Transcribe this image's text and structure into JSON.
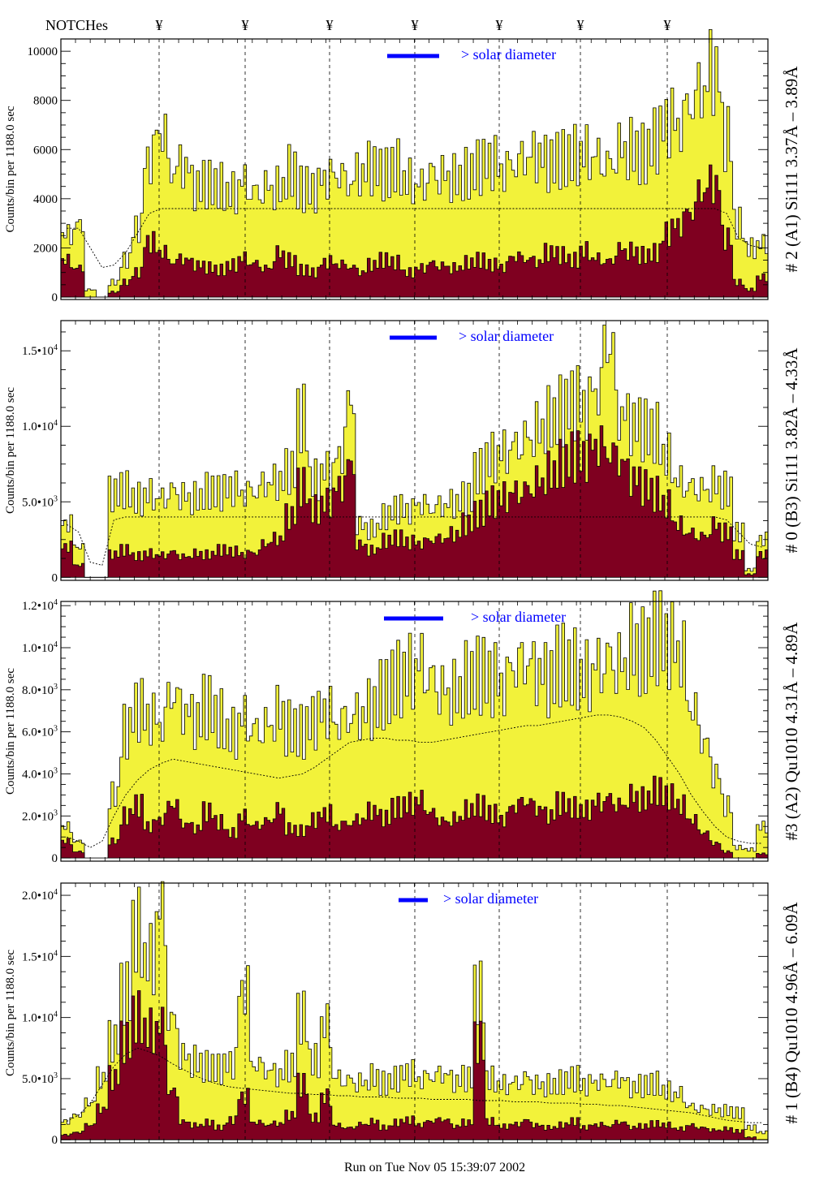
{
  "header": {
    "notches_label": "NOTCHes",
    "notch_symbol": "¥",
    "notch_count": 7
  },
  "footer": {
    "run_text": "Run on Tue Nov 05 15:39:07 2002"
  },
  "colors": {
    "total": "#f2f23a",
    "subset": "#7f0020",
    "legend": "#0000ff",
    "mean": "#000000"
  },
  "chart_data": [
    {
      "type": "bar",
      "ylabel": "Counts/bin per   1188.0 sec",
      "right_label": "# 2 (A1) Si111  3.37Å – 3.89Å",
      "legend": "> solar diameter",
      "ylim": [
        -100,
        10500
      ],
      "yticks": [
        {
          "v": 0,
          "m": "0",
          "e": ""
        },
        {
          "v": 2000,
          "m": "2000",
          "e": ""
        },
        {
          "v": 4000,
          "m": "4000",
          "e": ""
        },
        {
          "v": 6000,
          "m": "6000",
          "e": ""
        },
        {
          "v": 8000,
          "m": "8000",
          "e": ""
        },
        {
          "v": 10000,
          "m": "10000",
          "e": ""
        }
      ],
      "series": [
        {
          "name": "total",
          "values": [
            2600,
            3000,
            300,
            0,
            600,
            1500,
            2800,
            5500,
            6500,
            5000,
            5200,
            4400,
            4600,
            4500,
            4300,
            4800,
            4400,
            4600,
            4500,
            5100,
            4400,
            4300,
            4700,
            4800,
            4500,
            4900,
            5200,
            5000,
            5300,
            4800,
            4700,
            5200,
            5100,
            4900,
            5000,
            5300,
            5400,
            5000,
            5200,
            5500,
            5600,
            5400,
            5600,
            5800,
            6000,
            5900,
            5600,
            6200,
            6100,
            5800,
            6400,
            7000,
            6800,
            7600,
            8200,
            9000,
            6500,
            3000,
            2000,
            2200
          ]
        },
        {
          "name": "subset",
          "values": [
            1500,
            1200,
            0,
            0,
            200,
            600,
            1000,
            2200,
            1800,
            1400,
            1500,
            1300,
            1200,
            1100,
            1300,
            1600,
            1400,
            1200,
            1800,
            1500,
            1100,
            1000,
            1400,
            1300,
            1200,
            1000,
            1300,
            1500,
            1400,
            1000,
            1200,
            1400,
            1300,
            1200,
            1400,
            1500,
            1300,
            1200,
            1600,
            1500,
            1400,
            1800,
            1700,
            1500,
            1900,
            1600,
            1500,
            2000,
            1900,
            1700,
            1800,
            2600,
            2900,
            3400,
            4200,
            4500,
            2400,
            600,
            300,
            800
          ]
        },
        {
          "name": "mean",
          "values": [
            2800,
            2800,
            2000,
            1200,
            1300,
            1800,
            2600,
            3400,
            3600,
            3600,
            3600,
            3600,
            3600,
            3600,
            3600,
            3600,
            3600,
            3600,
            3600,
            3600,
            3600,
            3600,
            3600,
            3600,
            3600,
            3600,
            3600,
            3600,
            3600,
            3600,
            3600,
            3600,
            3600,
            3600,
            3600,
            3600,
            3600,
            3600,
            3600,
            3600,
            3600,
            3600,
            3600,
            3600,
            3600,
            3600,
            3600,
            3600,
            3600,
            3600,
            3600,
            3600,
            3600,
            3600,
            3600,
            3600,
            3400,
            2400,
            2100,
            2000
          ]
        }
      ]
    },
    {
      "type": "bar",
      "ylabel": "Counts/bin per   1188.0 sec",
      "right_label": "# 0 (B3) Si111  3.82Å – 4.33Å",
      "legend": "> solar diameter",
      "ylim": [
        -200,
        17000
      ],
      "yticks": [
        {
          "v": 0,
          "m": "0",
          "e": ""
        },
        {
          "v": 5000,
          "m": "5.0•10",
          "e": "3"
        },
        {
          "v": 10000,
          "m": "1.0•10",
          "e": "4"
        },
        {
          "v": 15000,
          "m": "1.5•10",
          "e": "4"
        }
      ],
      "series": [
        {
          "name": "total",
          "values": [
            3500,
            2000,
            0,
            0,
            5500,
            5800,
            5200,
            5600,
            5400,
            5900,
            5500,
            5300,
            5700,
            5600,
            5800,
            5400,
            5500,
            6000,
            6200,
            7000,
            10500,
            6500,
            7200,
            8000,
            11500,
            3500,
            3200,
            4000,
            4500,
            4300,
            4700,
            4400,
            4600,
            4800,
            5200,
            7000,
            8000,
            8500,
            9000,
            9500,
            10000,
            10500,
            11000,
            11500,
            11000,
            12000,
            15000,
            10500,
            10000,
            9800,
            9500,
            8000,
            6500,
            6200,
            6000,
            6300,
            5800,
            3000,
            500,
            2500
          ]
        },
        {
          "name": "subset",
          "values": [
            2000,
            800,
            0,
            0,
            1500,
            1800,
            1400,
            1600,
            1500,
            1700,
            1400,
            1600,
            1500,
            1800,
            1700,
            1500,
            1600,
            2200,
            2500,
            4000,
            6000,
            4500,
            5000,
            6000,
            7500,
            2200,
            1800,
            2400,
            2600,
            2300,
            2200,
            2400,
            2500,
            2800,
            3500,
            4200,
            5000,
            5400,
            5800,
            6000,
            6500,
            7000,
            7500,
            8000,
            7800,
            8500,
            8000,
            7500,
            6500,
            6000,
            5500,
            4800,
            3500,
            3000,
            2800,
            3500,
            3000,
            1500,
            200,
            1500
          ]
        },
        {
          "name": "mean",
          "values": [
            3500,
            3000,
            1000,
            800,
            3800,
            4000,
            4000,
            4000,
            4000,
            4000,
            4000,
            4000,
            4000,
            4000,
            4000,
            4000,
            4000,
            4000,
            4000,
            4000,
            4000,
            4000,
            4000,
            4000,
            4000,
            4000,
            4000,
            4000,
            4000,
            4000,
            4000,
            4000,
            4000,
            4000,
            4000,
            4000,
            4000,
            4000,
            4000,
            4000,
            4000,
            4000,
            4000,
            4000,
            4000,
            4000,
            4000,
            4000,
            4000,
            4000,
            4000,
            4000,
            4000,
            4000,
            4000,
            4000,
            3800,
            3000,
            2200,
            2000
          ]
        }
      ]
    },
    {
      "type": "bar",
      "ylabel": "Counts/bin per   1188.0 sec",
      "right_label": "#3 (A2) Qu1010  4.31Å – 4.89Å",
      "legend": "> solar diameter",
      "ylim": [
        -150,
        12200
      ],
      "yticks": [
        {
          "v": 0,
          "m": "0",
          "e": ""
        },
        {
          "v": 2000,
          "m": "2.0•10",
          "e": "3"
        },
        {
          "v": 4000,
          "m": "4.0•10",
          "e": "3"
        },
        {
          "v": 6000,
          "m": "6.0•10",
          "e": "3"
        },
        {
          "v": 8000,
          "m": "8.0•10",
          "e": "3"
        },
        {
          "v": 10000,
          "m": "1.0•10",
          "e": "4"
        },
        {
          "v": 12000,
          "m": "1.2•10",
          "e": "4"
        }
      ],
      "series": [
        {
          "name": "total",
          "values": [
            1500,
            800,
            0,
            0,
            3000,
            6000,
            7000,
            6500,
            6200,
            7500,
            6800,
            6400,
            7200,
            6600,
            6000,
            6800,
            6300,
            6500,
            7000,
            6200,
            6000,
            6500,
            6800,
            6200,
            6400,
            6600,
            7000,
            7800,
            8500,
            9000,
            9500,
            8800,
            8200,
            8000,
            8500,
            8700,
            8400,
            8000,
            8800,
            9000,
            8600,
            8400,
            9200,
            9000,
            8800,
            9400,
            9800,
            9500,
            10200,
            9800,
            10500,
            10000,
            9500,
            7000,
            5500,
            4000,
            2500,
            500,
            400,
            1500
          ]
        },
        {
          "name": "subset",
          "values": [
            800,
            300,
            0,
            0,
            800,
            2000,
            2500,
            1500,
            1800,
            2500,
            1600,
            1400,
            2200,
            1700,
            1200,
            2000,
            1600,
            1800,
            2300,
            1400,
            1300,
            1800,
            2100,
            1500,
            1600,
            1800,
            2200,
            1900,
            2400,
            2600,
            2800,
            2200,
            1800,
            1900,
            2300,
            2500,
            2100,
            1800,
            2400,
            2600,
            2300,
            2000,
            2600,
            2400,
            2300,
            2700,
            2900,
            2600,
            3000,
            2800,
            3200,
            2900,
            2500,
            1800,
            1200,
            700,
            300,
            0,
            0,
            200
          ]
        },
        {
          "name": "mean",
          "values": [
            1000,
            800,
            500,
            800,
            2000,
            3000,
            3700,
            4200,
            4500,
            4700,
            4600,
            4500,
            4400,
            4300,
            4200,
            4100,
            4000,
            3900,
            3800,
            3900,
            4000,
            4300,
            4700,
            5100,
            5500,
            5600,
            5700,
            5700,
            5600,
            5600,
            5500,
            5500,
            5600,
            5700,
            5800,
            5900,
            6000,
            6100,
            6200,
            6300,
            6300,
            6400,
            6500,
            6600,
            6700,
            6800,
            6800,
            6700,
            6500,
            6200,
            5600,
            4800,
            4000,
            3000,
            2200,
            1500,
            1000,
            800,
            700,
            700
          ]
        }
      ]
    },
    {
      "type": "bar",
      "ylabel": "Counts/bin per   1188.0 sec",
      "right_label": "# 1 (B4) Qu1010 4.96Å – 6.09Å",
      "legend": "> solar diameter",
      "ylim": [
        -250,
        21000
      ],
      "yticks": [
        {
          "v": 0,
          "m": "0",
          "e": ""
        },
        {
          "v": 5000,
          "m": "5.0•10",
          "e": "3"
        },
        {
          "v": 10000,
          "m": "1.0•10",
          "e": "4"
        },
        {
          "v": 15000,
          "m": "1.5•10",
          "e": "4"
        },
        {
          "v": 20000,
          "m": "2.0•10",
          "e": "4"
        }
      ],
      "series": [
        {
          "name": "total",
          "values": [
            1500,
            2000,
            3000,
            5000,
            8000,
            12000,
            17000,
            15000,
            19000,
            10000,
            7000,
            6500,
            6000,
            5800,
            6200,
            12000,
            6000,
            5500,
            5200,
            6000,
            10000,
            6500,
            9500,
            5200,
            5000,
            4800,
            5200,
            4600,
            5000,
            5400,
            4800,
            5000,
            5200,
            4700,
            5000,
            12000,
            5000,
            4600,
            4800,
            5200,
            4600,
            4500,
            4700,
            5000,
            4400,
            4600,
            4500,
            4800,
            4200,
            4400,
            4600,
            4000,
            3800,
            2800,
            2600,
            2500,
            2400,
            2200,
            1000,
            600
          ]
        },
        {
          "name": "subset",
          "values": [
            400,
            600,
            1200,
            2500,
            5000,
            8000,
            10000,
            9000,
            9500,
            4000,
            1500,
            1200,
            1400,
            1000,
            1600,
            3500,
            1400,
            1200,
            1300,
            2000,
            4500,
            1800,
            3500,
            1200,
            1000,
            1300,
            1500,
            1000,
            1400,
            1600,
            1200,
            1500,
            1600,
            1100,
            1400,
            8000,
            1500,
            1100,
            1300,
            1600,
            1200,
            1000,
            1200,
            1500,
            1000,
            1200,
            1100,
            1400,
            1000,
            1100,
            1300,
            1200,
            900,
            1200,
            1000,
            800,
            900,
            700,
            200,
            0
          ]
        },
        {
          "name": "mean",
          "values": [
            1500,
            2000,
            3000,
            4500,
            6000,
            7000,
            7500,
            7200,
            6800,
            6200,
            5700,
            5200,
            4800,
            4500,
            4300,
            4200,
            4100,
            4000,
            3900,
            3800,
            3800,
            3700,
            3700,
            3600,
            3600,
            3500,
            3500,
            3500,
            3400,
            3400,
            3400,
            3300,
            3300,
            3300,
            3300,
            3200,
            3200,
            3200,
            3100,
            3100,
            3100,
            3000,
            3000,
            3000,
            2900,
            2900,
            2800,
            2800,
            2700,
            2600,
            2500,
            2400,
            2300,
            2200,
            2000,
            1800,
            1600,
            1500,
            1400,
            1400
          ]
        }
      ]
    }
  ]
}
